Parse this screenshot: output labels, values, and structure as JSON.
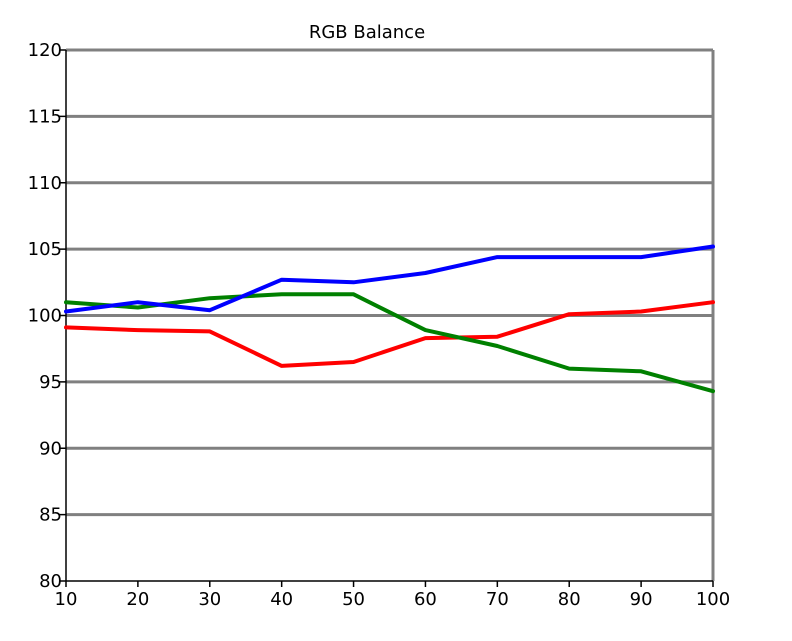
{
  "chart_data": {
    "type": "line",
    "title": "RGB Balance",
    "xlabel": "",
    "ylabel": "",
    "x": [
      10,
      20,
      30,
      40,
      50,
      60,
      70,
      80,
      90,
      100
    ],
    "xlim": [
      10,
      100
    ],
    "ylim": [
      80,
      120
    ],
    "y_ticks": [
      80,
      85,
      90,
      95,
      100,
      105,
      110,
      115,
      120
    ],
    "x_ticks": [
      10,
      20,
      30,
      40,
      50,
      60,
      70,
      80,
      90,
      100
    ],
    "grid": "horizontal",
    "legend": "none",
    "series": [
      {
        "color": "#ff0000",
        "values": [
          99.1,
          98.9,
          98.8,
          96.2,
          96.5,
          98.3,
          98.4,
          100.1,
          100.3,
          101.0
        ]
      },
      {
        "color": "#008000",
        "values": [
          101.0,
          100.6,
          101.3,
          101.6,
          101.6,
          98.9,
          97.7,
          96.0,
          95.8,
          94.3
        ]
      },
      {
        "color": "#0000ff",
        "values": [
          100.3,
          101.0,
          100.4,
          102.7,
          102.5,
          103.2,
          104.4,
          104.4,
          104.4,
          105.2
        ]
      }
    ]
  }
}
